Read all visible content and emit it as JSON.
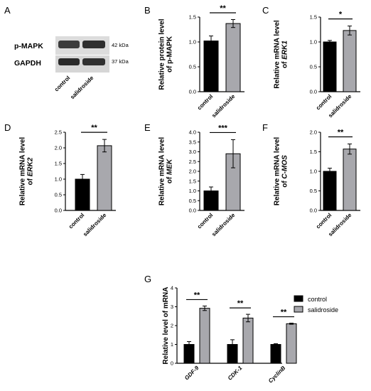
{
  "figure": {
    "panels": [
      "A",
      "B",
      "C",
      "D",
      "E",
      "F",
      "G"
    ],
    "legend": {
      "control": "control",
      "salidroside": "salidroside"
    }
  },
  "western_blot": {
    "bands": [
      {
        "label": "p-MAPK",
        "size": "42 kDa"
      },
      {
        "label": "GAPDH",
        "size": "37 kDa"
      }
    ],
    "lanes": [
      "control",
      "salidroside"
    ]
  },
  "colors": {
    "control": "#000000",
    "salidroside": "#a8a8ad"
  },
  "chart_data": [
    {
      "panel": "B",
      "type": "bar",
      "categories": [
        "control",
        "salidroside"
      ],
      "values": [
        1.02,
        1.37
      ],
      "errors": [
        0.1,
        0.08
      ],
      "ylabel_lines": [
        "Relative protein level",
        "of p-MAPK"
      ],
      "ylim": [
        0,
        1.5
      ],
      "yticks": [
        "0.0",
        "0.5",
        "1.0",
        "1.5"
      ],
      "significance": "**"
    },
    {
      "panel": "C",
      "type": "bar",
      "categories": [
        "control",
        "salidroside"
      ],
      "values": [
        1.0,
        1.23
      ],
      "errors": [
        0.03,
        0.09
      ],
      "ylabel_lines": [
        "Relative mRNA level",
        "of ERK1"
      ],
      "ylabel_italic": "ERK1",
      "ylim": [
        0,
        1.5
      ],
      "yticks": [
        "0.0",
        "0.5",
        "1.0",
        "1.5"
      ],
      "significance": "*"
    },
    {
      "panel": "D",
      "type": "bar",
      "categories": [
        "control",
        "salidroside"
      ],
      "values": [
        1.0,
        2.07
      ],
      "errors": [
        0.15,
        0.2
      ],
      "ylabel_lines": [
        "Relative mRNA level",
        "of ERK2"
      ],
      "ylabel_italic": "ERK2",
      "ylim": [
        0,
        2.5
      ],
      "yticks": [
        "0.0",
        "0.5",
        "1.0",
        "1.5",
        "2.0",
        "2.5"
      ],
      "significance": "**"
    },
    {
      "panel": "E",
      "type": "bar",
      "categories": [
        "control",
        "salidroside"
      ],
      "values": [
        1.0,
        2.9
      ],
      "errors": [
        0.2,
        0.72
      ],
      "ylabel_lines": [
        "Relative mRNA level",
        "of MEK"
      ],
      "ylabel_italic": "MEK",
      "ylim": [
        0,
        4.0
      ],
      "yticks": [
        "0.0",
        "0.5",
        "1.0",
        "1.5",
        "2.0",
        "2.5",
        "3.0",
        "3.5",
        "4.0"
      ],
      "significance": "***"
    },
    {
      "panel": "F",
      "type": "bar",
      "categories": [
        "control",
        "salidroside"
      ],
      "values": [
        1.0,
        1.57
      ],
      "errors": [
        0.08,
        0.13
      ],
      "ylabel_lines": [
        "Relative mRNA level",
        "of C-MOS"
      ],
      "ylabel_italic": "C-MOS",
      "ylim": [
        0,
        2.0
      ],
      "yticks": [
        "0.0",
        "0.5",
        "1.0",
        "1.5",
        "2.0"
      ],
      "significance": "**"
    },
    {
      "panel": "G",
      "type": "bar",
      "categories": [
        "GDF-9",
        "CDK-1",
        "CyclinB"
      ],
      "series": [
        {
          "name": "control",
          "values": [
            1.0,
            1.0,
            1.0
          ],
          "errors": [
            0.15,
            0.25,
            0.04
          ]
        },
        {
          "name": "salidroside",
          "values": [
            2.92,
            2.4,
            2.1
          ],
          "errors": [
            0.12,
            0.2,
            0.03
          ]
        }
      ],
      "ylabel_lines": [
        "Relative level of mRNA"
      ],
      "ylim": [
        0,
        4
      ],
      "yticks": [
        "0",
        "1",
        "2",
        "3",
        "4"
      ],
      "significance": [
        "**",
        "**",
        "**"
      ],
      "legend_position": "right"
    }
  ]
}
